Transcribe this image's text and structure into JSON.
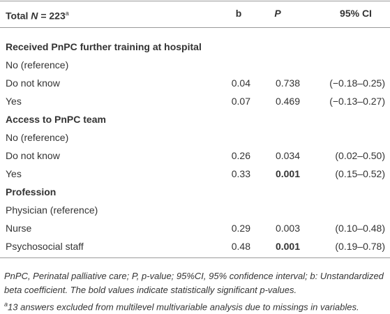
{
  "header": {
    "total": "Total",
    "n_symbol": "N",
    "n_value": "= 223",
    "footnote_mark": "a",
    "columns": [
      "b",
      "P",
      "95% CI"
    ]
  },
  "sections": [
    {
      "title": "Received PnPC further training at hospital",
      "rows": [
        {
          "label": "No (reference)"
        },
        {
          "label": "Do not know",
          "b": "0.04",
          "p": {
            "text": "0.738",
            "bold": false
          },
          "ci": "(−0.18–0.25)"
        },
        {
          "label": "Yes",
          "b": "0.07",
          "p": {
            "text": "0.469",
            "bold": false
          },
          "ci": "(−0.13–0.27)"
        }
      ]
    },
    {
      "title": "Access to PnPC team",
      "rows": [
        {
          "label": "No (reference)"
        },
        {
          "label": "Do not know",
          "b": "0.26",
          "p": {
            "text": "0.034",
            "bold": false
          },
          "ci": "(0.02–0.50)"
        },
        {
          "label": "Yes",
          "b": "0.33",
          "p": {
            "text": "0.001",
            "bold": true
          },
          "ci": "(0.15–0.52)"
        }
      ]
    },
    {
      "title": "Profession",
      "rows": [
        {
          "label": "Physician (reference)"
        },
        {
          "label": "Nurse",
          "b": "0.29",
          "p": {
            "text": "0.003",
            "bold": false
          },
          "ci": "(0.10–0.48)"
        },
        {
          "label": "Psychosocial staff",
          "b": "0.48",
          "p": {
            "text": "0.001",
            "bold": true
          },
          "ci": "(0.19–0.78)"
        }
      ]
    }
  ],
  "footnotes": {
    "note": "PnPC, Perinatal palliative care; P, p-value; 95%CI, 95% confidence interval; b: Unstandardized beta coefficient. The bold values indicate statistically significant p-values.",
    "mark": "a",
    "excluded": "13 answers excluded from multilevel multivariable analysis due to missings in variables."
  }
}
